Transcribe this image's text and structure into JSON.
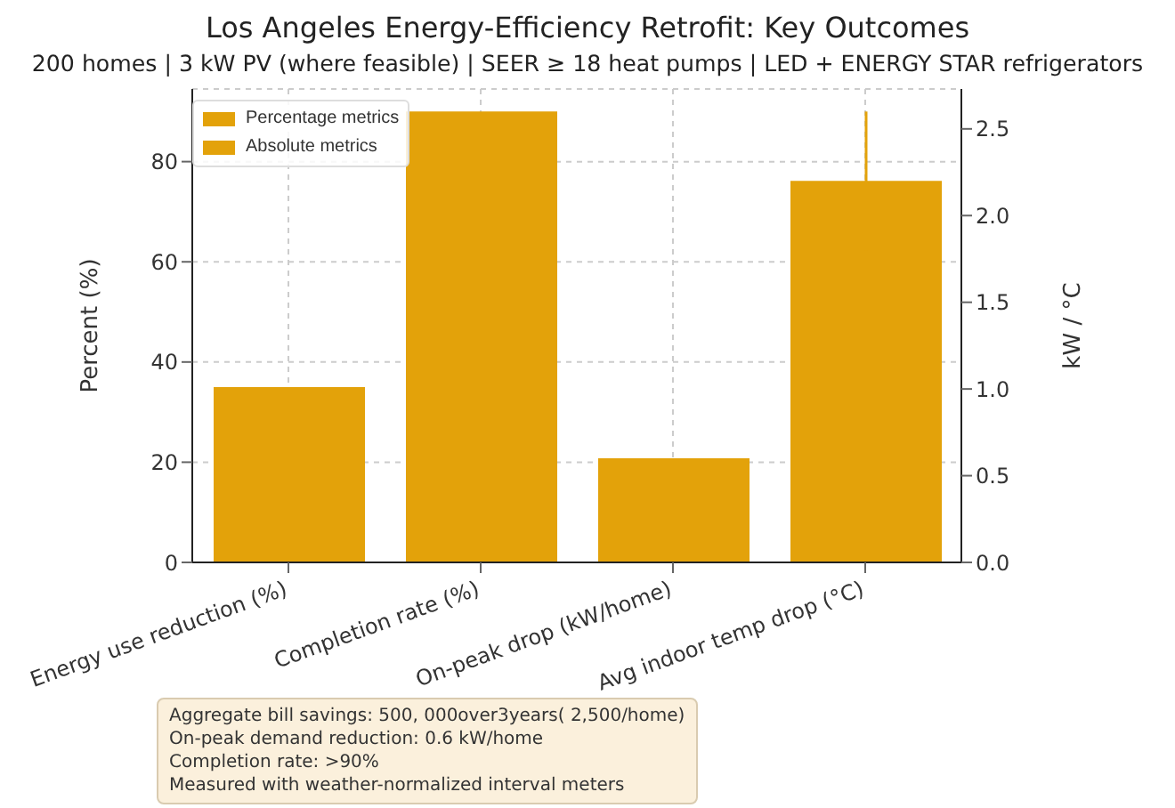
{
  "chart_data": {
    "type": "bar",
    "title": "Los Angeles Energy-Efficiency Retrofit: Key Outcomes",
    "subtitle": "200 homes | 3 kW PV (where feasible) | SEER ≥ 18 heat pumps | LED + ENERGY STAR refrigerators",
    "ylabel": "Percent (%)",
    "y2label": "kW / °C",
    "categories": [
      "Energy use reduction (%)",
      "Completion rate (%)",
      "On-peak drop (kW/home)",
      "Avg indoor temp drop (°C)"
    ],
    "series": [
      {
        "name": "Percentage metrics",
        "color": "#e3a20a",
        "values": [
          35,
          90,
          null,
          null
        ]
      },
      {
        "name": "Absolute metrics",
        "color": "#e3a20a",
        "axis": "y2",
        "values": [
          null,
          null,
          0.6,
          2.2
        ],
        "errors": [
          null,
          null,
          null,
          0.4
        ]
      }
    ],
    "ylim": [
      0,
      94.5
    ],
    "yticks": [
      0,
      20,
      40,
      60,
      80
    ],
    "y2lim": [
      0,
      2.73
    ],
    "y2ticks": [
      {
        "value": 0,
        "label": "0.0"
      },
      {
        "value": 0.5,
        "label": "0.5"
      },
      {
        "value": 1,
        "label": "1.0"
      },
      {
        "value": 1.5,
        "label": "1.5"
      },
      {
        "value": 2,
        "label": "2.0"
      },
      {
        "value": 2.5,
        "label": "2.5"
      }
    ],
    "grid": true,
    "legend": "top left",
    "annotations": [
      "Aggregate bill savings: 500, 000over3years( 2,500/home)",
      "On-peak demand reduction: 0.6 kW/home",
      "Completion rate: >90%",
      "Measured with weather-normalized interval meters"
    ]
  }
}
